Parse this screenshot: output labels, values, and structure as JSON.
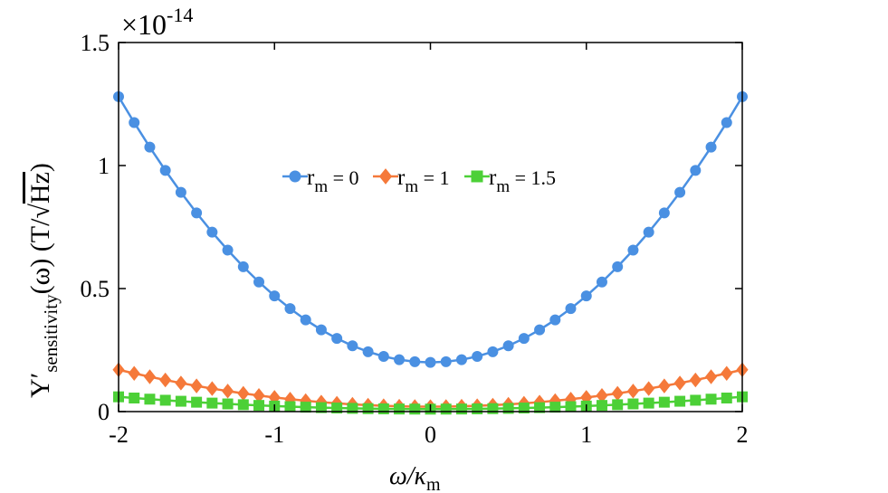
{
  "chart_data": {
    "type": "line",
    "title": "",
    "xlabel": "ω/κm",
    "xlabel_parts": {
      "base": "ω/κ",
      "sub": "m"
    },
    "ylabel": "Y′sensitivity(ω) (T/√Hz)",
    "ylabel_parts": {
      "base": "Y′",
      "sub": "sensitivity",
      "rest": "(ω) (T/",
      "radical": "√",
      "radicand": "Hz",
      "close": ")"
    },
    "y_scale_label": {
      "base": "×10",
      "exp": "-14"
    },
    "xlim": [
      -2,
      2
    ],
    "ylim": [
      0,
      1.5
    ],
    "xticks": [
      -2,
      -1,
      0,
      1,
      2
    ],
    "xtick_labels": [
      "-2",
      "-1",
      "0",
      "1",
      "2"
    ],
    "yticks": [
      0,
      0.5,
      1,
      1.5
    ],
    "ytick_labels": [
      "0",
      "0.5",
      "1",
      "1.5"
    ],
    "grid": false,
    "legend": "inside-top-center",
    "series": [
      {
        "name": "rm = 0",
        "label_base": "r",
        "label_sub": "m",
        "label_value": "= 0",
        "color": "#4a90e2",
        "marker": "circle",
        "y_at_zero": 0.2,
        "y_at_edge": 1.28,
        "points": 41
      },
      {
        "name": "rm = 1",
        "label_base": "r",
        "label_sub": "m",
        "label_value": "= 1",
        "color": "#f5793a",
        "marker": "diamond",
        "y_at_zero": 0.02,
        "y_at_edge": 0.17,
        "points": 41
      },
      {
        "name": "rm = 1.5",
        "label_base": "r",
        "label_sub": "m",
        "label_value": "= 1.5",
        "color": "#4cd037",
        "marker": "square",
        "y_at_zero": 0.01,
        "y_at_edge": 0.06,
        "points": 41
      }
    ]
  }
}
